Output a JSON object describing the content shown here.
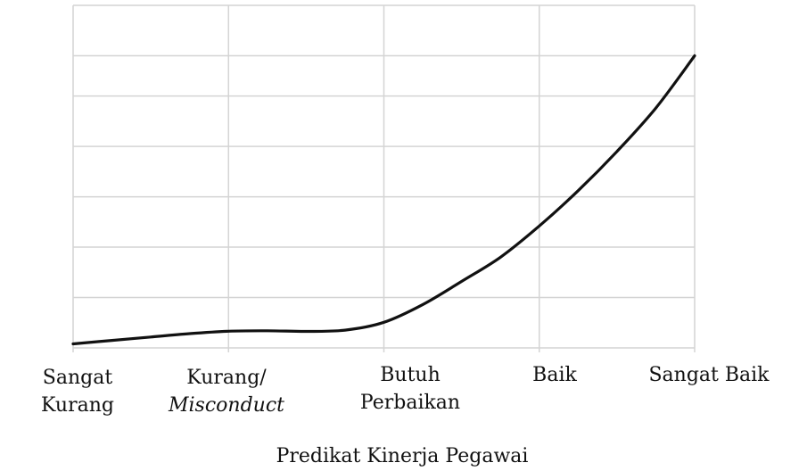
{
  "chart_data": {
    "type": "line",
    "title": "",
    "xlabel": "Predikat Kinerja Pegawai",
    "ylabel": "",
    "categories": [
      {
        "lines": [
          "Sangat",
          "Kurang"
        ],
        "italic": [
          false,
          false
        ]
      },
      {
        "lines": [
          "Kurang/",
          "Misconduct"
        ],
        "italic": [
          false,
          true
        ]
      },
      {
        "lines": [
          "Butuh",
          "Perbaikan"
        ],
        "italic": [
          false,
          false
        ]
      },
      {
        "lines": [
          "Baik"
        ],
        "italic": [
          false
        ]
      },
      {
        "lines": [
          "Sangat Baik"
        ],
        "italic": [
          false
        ]
      }
    ],
    "x": [
      0,
      0.25,
      0.5,
      0.75,
      1.0,
      1.25,
      1.5,
      1.75,
      2.0,
      2.25,
      2.5,
      2.75,
      3.0,
      3.25,
      3.5,
      3.75,
      4.0
    ],
    "series": [
      {
        "values": [
          0.2,
          0.37,
          0.54,
          0.71,
          0.83,
          0.85,
          0.82,
          0.88,
          1.27,
          2.15,
          3.3,
          4.5,
          6.05,
          7.8,
          9.75,
          11.9,
          14.5
        ],
        "color": "#111111"
      }
    ],
    "ylim": [
      0,
      17
    ],
    "y_gridlines": [
      0,
      2.5,
      5,
      7.5,
      10,
      12.5,
      14.5,
      17
    ],
    "grid": true,
    "grid_color": "#d4d4d4"
  }
}
